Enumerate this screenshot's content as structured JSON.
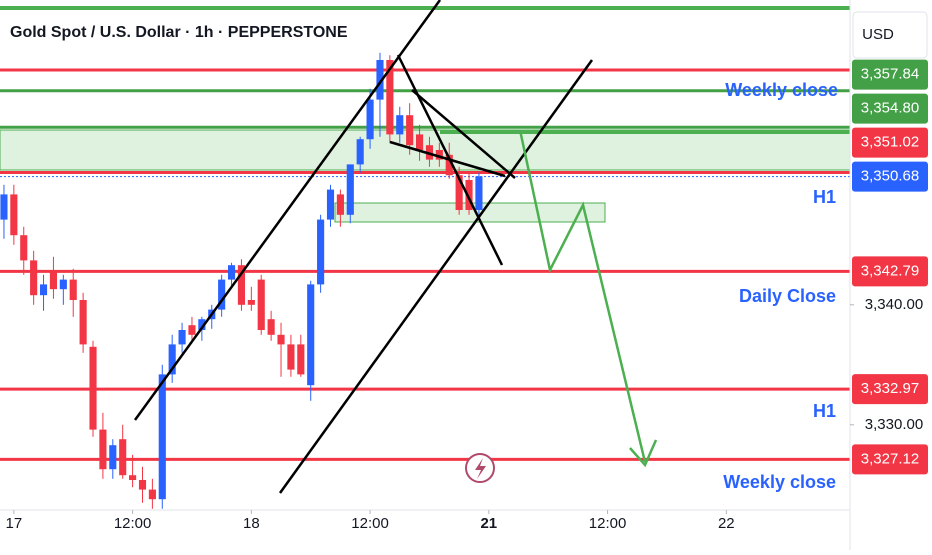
{
  "chart_data": {
    "type": "candlestick",
    "title": "Gold Spot / U.S. Dollar · 1h · PEPPERSTONE",
    "currency": "USD",
    "up_color": "#2962ff",
    "down_color": "#f23645",
    "ohlc": [
      [
        3347.1,
        3350.0,
        3345.5,
        3349.2
      ],
      [
        3349.2,
        3350.0,
        3345.0,
        3345.8
      ],
      [
        3345.8,
        3346.5,
        3342.5,
        3343.7
      ],
      [
        3343.7,
        3344.5,
        3340.0,
        3340.8
      ],
      [
        3340.8,
        3342.5,
        3339.5,
        3341.7
      ],
      [
        3342.9,
        3344.0,
        3340.5,
        3341.3
      ],
      [
        3341.3,
        3342.5,
        3340.0,
        3342.1
      ],
      [
        3342.1,
        3343.0,
        3339.0,
        3340.4
      ],
      [
        3340.4,
        3341.0,
        3336.0,
        3336.7
      ],
      [
        3336.5,
        3337.0,
        3329.0,
        3329.6
      ],
      [
        3329.6,
        3331.0,
        3325.5,
        3326.3
      ],
      [
        3326.3,
        3328.8,
        3325.5,
        3328.3
      ],
      [
        3328.8,
        3330.0,
        3325.5,
        3325.8
      ],
      [
        3325.8,
        3327.5,
        3324.8,
        3325.4
      ],
      [
        3325.4,
        3326.5,
        3323.5,
        3324.6
      ],
      [
        3324.6,
        3325.5,
        3323.0,
        3323.8
      ],
      [
        3323.8,
        3335.0,
        3323.0,
        3334.2
      ],
      [
        3334.2,
        3337.5,
        3333.5,
        3336.7
      ],
      [
        3336.7,
        3338.5,
        3336.0,
        3337.9
      ],
      [
        3338.3,
        3339.0,
        3337.0,
        3337.5
      ],
      [
        3337.9,
        3339.0,
        3337.0,
        3338.8
      ],
      [
        3338.8,
        3340.0,
        3338.0,
        3339.6
      ],
      [
        3339.6,
        3342.5,
        3339.0,
        3342.1
      ],
      [
        3342.1,
        3343.5,
        3341.5,
        3343.3
      ],
      [
        3343.3,
        3343.8,
        3339.5,
        3340.0
      ],
      [
        3340.4,
        3341.5,
        3339.5,
        3340.0
      ],
      [
        3342.1,
        3342.5,
        3337.5,
        3337.9
      ],
      [
        3338.8,
        3339.5,
        3337.0,
        3337.5
      ],
      [
        3337.5,
        3338.5,
        3334.0,
        3336.7
      ],
      [
        3336.7,
        3337.5,
        3334.0,
        3334.6
      ],
      [
        3336.7,
        3337.5,
        3334.0,
        3334.2
      ],
      [
        3333.3,
        3342.0,
        3332.0,
        3341.7
      ],
      [
        3341.7,
        3347.5,
        3341.0,
        3347.1
      ],
      [
        3347.1,
        3350.0,
        3346.5,
        3349.6
      ],
      [
        3349.2,
        3349.6,
        3346.5,
        3347.5
      ],
      [
        3347.5,
        3351.7,
        3346.8,
        3351.7
      ],
      [
        3351.7,
        3354.0,
        3351.0,
        3353.8
      ],
      [
        3353.8,
        3358.0,
        3353.0,
        3357.1
      ],
      [
        3357.1,
        3361.0,
        3354.0,
        3360.4
      ],
      [
        3360.4,
        3360.8,
        3353.5,
        3354.2
      ],
      [
        3354.2,
        3356.5,
        3353.5,
        3355.8
      ],
      [
        3355.8,
        3356.8,
        3352.5,
        3353.3
      ],
      [
        3354.2,
        3355.0,
        3352.0,
        3352.9
      ],
      [
        3353.3,
        3354.0,
        3351.5,
        3352.1
      ],
      [
        3352.9,
        3353.5,
        3351.5,
        3352.1
      ],
      [
        3352.5,
        3353.5,
        3350.5,
        3350.8
      ],
      [
        3350.8,
        3351.5,
        3347.5,
        3347.9
      ],
      [
        3350.4,
        3351.0,
        3347.5,
        3347.9
      ],
      [
        3347.9,
        3351.0,
        3347.5,
        3350.7
      ]
    ],
    "xlim": [
      -0.4,
      85.5
    ],
    "xticks": [
      {
        "value": 1,
        "label": "17"
      },
      {
        "value": 13,
        "label": "12:00"
      },
      {
        "value": 25,
        "label": "18"
      },
      {
        "value": 37,
        "label": "12:00"
      },
      {
        "value": 49,
        "label": "21"
      },
      {
        "value": 61,
        "label": "12:00"
      },
      {
        "value": 73,
        "label": "22"
      }
    ],
    "ylim": [
      3322.9,
      3365.4
    ],
    "yticks": [
      {
        "value": 3330,
        "label": "3,330.00"
      },
      {
        "value": 3340,
        "label": "3,340.00"
      }
    ],
    "levels": [
      {
        "value": 3357.84,
        "label": "3,357.84",
        "color": "#43a047"
      },
      {
        "value": 3354.8,
        "label": "3,354.80",
        "color": "#43a047"
      },
      {
        "value": 3351.02,
        "label": "3,351.02",
        "color": "#f23645"
      },
      {
        "value": 3350.68,
        "label": "3,350.68",
        "color": "#2962ff"
      },
      {
        "value": 3342.79,
        "label": "3,342.79",
        "color": "#f23645"
      },
      {
        "value": 3332.97,
        "label": "3,332.97",
        "color": "#f23645"
      },
      {
        "value": 3327.12,
        "label": "3,327.12",
        "color": "#f23645"
      }
    ],
    "annotations": [
      "Weekly close",
      "H1",
      "Daily Close",
      "H1",
      "Weekly close"
    ]
  }
}
